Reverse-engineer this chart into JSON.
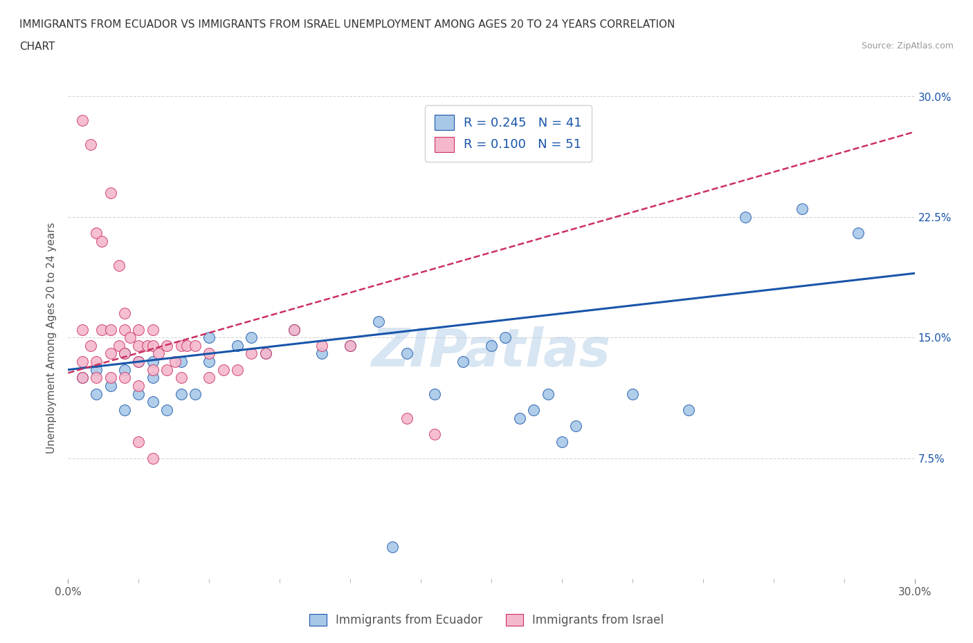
{
  "title_line1": "IMMIGRANTS FROM ECUADOR VS IMMIGRANTS FROM ISRAEL UNEMPLOYMENT AMONG AGES 20 TO 24 YEARS CORRELATION",
  "title_line2": "CHART",
  "source_text": "Source: ZipAtlas.com",
  "ylabel": "Unemployment Among Ages 20 to 24 years",
  "xlim": [
    0,
    0.3
  ],
  "ylim": [
    0,
    0.3
  ],
  "xtick_labels_only_ends": [
    "0.0%",
    "30.0%"
  ],
  "ytick_labels_right": [
    "7.5%",
    "15.0%",
    "22.5%",
    "30.0%"
  ],
  "yticks_right": [
    0.075,
    0.15,
    0.225,
    0.3
  ],
  "legend_r1": "R = 0.245",
  "legend_n1": "N = 41",
  "legend_r2": "R = 0.100",
  "legend_n2": "N = 51",
  "legend_label1": "Immigrants from Ecuador",
  "legend_label2": "Immigrants from Israel",
  "color_ecuador": "#a8c8e8",
  "color_israel": "#f4b8cc",
  "color_trend_ecuador": "#1855aa",
  "color_trend_israel": "#cc3060",
  "watermark": "ZIPatlas",
  "ecuador_x": [
    0.005,
    0.01,
    0.01,
    0.015,
    0.02,
    0.02,
    0.02,
    0.025,
    0.025,
    0.03,
    0.03,
    0.03,
    0.035,
    0.04,
    0.04,
    0.045,
    0.05,
    0.05,
    0.06,
    0.065,
    0.07,
    0.08,
    0.09,
    0.1,
    0.11,
    0.12,
    0.13,
    0.14,
    0.15,
    0.155,
    0.16,
    0.165,
    0.17,
    0.175,
    0.18,
    0.2,
    0.22,
    0.24,
    0.26,
    0.28,
    0.115
  ],
  "ecuador_y": [
    0.125,
    0.13,
    0.115,
    0.12,
    0.14,
    0.13,
    0.105,
    0.135,
    0.115,
    0.135,
    0.125,
    0.11,
    0.105,
    0.135,
    0.115,
    0.115,
    0.15,
    0.135,
    0.145,
    0.15,
    0.14,
    0.155,
    0.14,
    0.145,
    0.16,
    0.14,
    0.115,
    0.135,
    0.145,
    0.15,
    0.1,
    0.105,
    0.115,
    0.085,
    0.095,
    0.115,
    0.105,
    0.225,
    0.23,
    0.215,
    0.02
  ],
  "israel_x": [
    0.005,
    0.005,
    0.005,
    0.008,
    0.01,
    0.01,
    0.012,
    0.015,
    0.015,
    0.015,
    0.018,
    0.02,
    0.02,
    0.02,
    0.022,
    0.025,
    0.025,
    0.025,
    0.025,
    0.028,
    0.03,
    0.03,
    0.03,
    0.032,
    0.035,
    0.035,
    0.038,
    0.04,
    0.04,
    0.042,
    0.045,
    0.05,
    0.05,
    0.055,
    0.06,
    0.065,
    0.07,
    0.08,
    0.09,
    0.1,
    0.005,
    0.008,
    0.01,
    0.012,
    0.015,
    0.018,
    0.02,
    0.025,
    0.03,
    0.12,
    0.13
  ],
  "israel_y": [
    0.155,
    0.135,
    0.125,
    0.145,
    0.135,
    0.125,
    0.155,
    0.155,
    0.14,
    0.125,
    0.145,
    0.155,
    0.14,
    0.125,
    0.15,
    0.155,
    0.145,
    0.135,
    0.12,
    0.145,
    0.155,
    0.145,
    0.13,
    0.14,
    0.145,
    0.13,
    0.135,
    0.145,
    0.125,
    0.145,
    0.145,
    0.14,
    0.125,
    0.13,
    0.13,
    0.14,
    0.14,
    0.155,
    0.145,
    0.145,
    0.285,
    0.27,
    0.215,
    0.21,
    0.24,
    0.195,
    0.165,
    0.085,
    0.075,
    0.1,
    0.09
  ],
  "background_color": "#ffffff",
  "grid_color": "#cccccc"
}
